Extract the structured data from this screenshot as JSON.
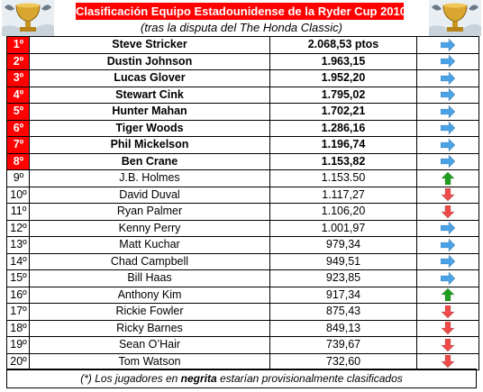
{
  "title": "Clasificación Equipo Estadounidense de la Ryder Cup 2010",
  "subtitle": "(tras la disputa del The Honda Classic)",
  "footnote": {
    "prefix": "(*) Los jugadores en ",
    "bold": "negrita",
    "suffix": " estarían provisionalmente clasificados"
  },
  "colors": {
    "title_bg": "#ff0000",
    "same_arrow": "#4aa3e6",
    "up_arrow": "#1f9e1f",
    "down_arrow": "#ef4a4a"
  },
  "rows": [
    {
      "pos": "1º",
      "name": "Steve Stricker",
      "points": "2.068,53  ptos",
      "trend": "same",
      "qualified": true
    },
    {
      "pos": "2º",
      "name": "Dustin Johnson",
      "points": "1.963,15",
      "trend": "same",
      "qualified": true
    },
    {
      "pos": "3º",
      "name": "Lucas Glover",
      "points": "1.952,20",
      "trend": "same",
      "qualified": true
    },
    {
      "pos": "4º",
      "name": "Stewart Cink",
      "points": "1.795,02",
      "trend": "same",
      "qualified": true
    },
    {
      "pos": "5º",
      "name": "Hunter Mahan",
      "points": "1.702,21",
      "trend": "same",
      "qualified": true
    },
    {
      "pos": "6º",
      "name": "Tiger Woods",
      "points": "1.286,16",
      "trend": "same",
      "qualified": true
    },
    {
      "pos": "7º",
      "name": "Phil Mickelson",
      "points": "1.196,74",
      "trend": "same",
      "qualified": true
    },
    {
      "pos": "8º",
      "name": "Ben Crane",
      "points": "1.153,82",
      "trend": "same",
      "qualified": true
    },
    {
      "pos": "9º",
      "name": "J.B. Holmes",
      "points": "1.153.50",
      "trend": "up",
      "qualified": false
    },
    {
      "pos": "10º",
      "name": "David Duval",
      "points": "1.117,27",
      "trend": "down",
      "qualified": false
    },
    {
      "pos": "11º",
      "name": "Ryan Palmer",
      "points": "1.106,20",
      "trend": "down",
      "qualified": false
    },
    {
      "pos": "12º",
      "name": "Kenny Perry",
      "points": "1.001,97",
      "trend": "same",
      "qualified": false
    },
    {
      "pos": "13º",
      "name": "Matt Kuchar",
      "points": "979,34",
      "trend": "same",
      "qualified": false
    },
    {
      "pos": "14º",
      "name": "Chad Campbell",
      "points": "949,51",
      "trend": "same",
      "qualified": false
    },
    {
      "pos": "15º",
      "name": "Bill Haas",
      "points": "923,85",
      "trend": "same",
      "qualified": false
    },
    {
      "pos": "16º",
      "name": "Anthony Kim",
      "points": "917,34",
      "trend": "up",
      "qualified": false
    },
    {
      "pos": "17º",
      "name": "Rickie Fowler",
      "points": "875,43",
      "trend": "down",
      "qualified": false
    },
    {
      "pos": "18º",
      "name": "Ricky Barnes",
      "points": "849,13",
      "trend": "down",
      "qualified": false
    },
    {
      "pos": "19º",
      "name": "Sean O’Hair",
      "points": "739,67",
      "trend": "down",
      "qualified": false
    },
    {
      "pos": "20º",
      "name": "Tom Watson",
      "points": "732,60",
      "trend": "down",
      "qualified": false
    }
  ]
}
